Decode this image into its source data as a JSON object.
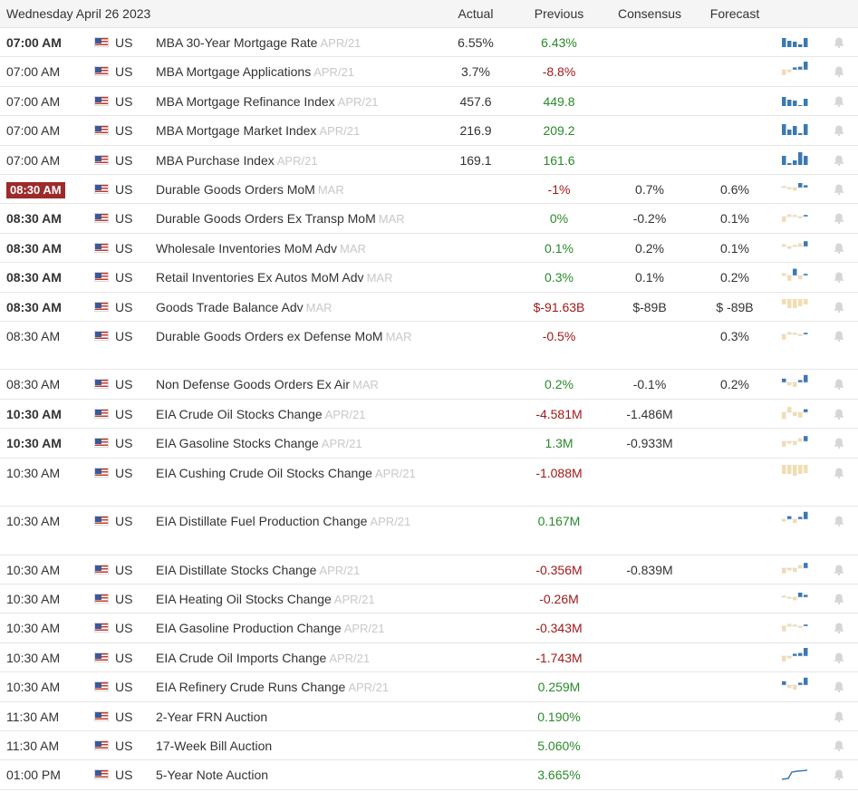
{
  "header": {
    "date": "Wednesday April 26 2023",
    "actual": "Actual",
    "previous": "Previous",
    "consensus": "Consensus",
    "forecast": "Forecast"
  },
  "colors": {
    "blue": "#3c79b0",
    "beige": "#f2dcb2",
    "red_badge": "#9c2b2b",
    "green": "#2a8a2a",
    "red": "#a01a1a"
  },
  "rows": [
    {
      "time": "07:00 AM",
      "bold": true,
      "highlight": false,
      "country": "US",
      "event": "MBA 30-Year Mortgage Rate",
      "period": "APR/21",
      "actual": "6.55%",
      "previous": "6.43%",
      "prev_color": "green",
      "consensus": "",
      "forecast": "",
      "chart": "blue"
    },
    {
      "time": "07:00 AM",
      "bold": false,
      "highlight": false,
      "country": "US",
      "event": "MBA Mortgage Applications",
      "period": "APR/21",
      "actual": "3.7%",
      "previous": "-8.8%",
      "prev_color": "red",
      "consensus": "",
      "forecast": "",
      "chart": "blue-mixed"
    },
    {
      "time": "07:00 AM",
      "bold": false,
      "highlight": false,
      "country": "US",
      "event": "MBA Mortgage Refinance Index",
      "period": "APR/21",
      "actual": "457.6",
      "previous": "449.8",
      "prev_color": "green",
      "consensus": "",
      "forecast": "",
      "chart": "blue"
    },
    {
      "time": "07:00 AM",
      "bold": false,
      "highlight": false,
      "country": "US",
      "event": "MBA Mortgage Market Index",
      "period": "APR/21",
      "actual": "216.9",
      "previous": "209.2",
      "prev_color": "green",
      "consensus": "",
      "forecast": "",
      "chart": "blue"
    },
    {
      "time": "07:00 AM",
      "bold": false,
      "highlight": false,
      "country": "US",
      "event": "MBA Purchase Index",
      "period": "APR/21",
      "actual": "169.1",
      "previous": "161.6",
      "prev_color": "green",
      "consensus": "",
      "forecast": "",
      "chart": "blue"
    },
    {
      "time": "08:30 AM",
      "bold": true,
      "highlight": true,
      "country": "US",
      "event": "Durable Goods Orders MoM",
      "period": "MAR",
      "actual": "",
      "previous": "-1%",
      "prev_color": "red",
      "consensus": "0.7%",
      "forecast": "0.6%",
      "chart": "mixed"
    },
    {
      "time": "08:30 AM",
      "bold": true,
      "highlight": false,
      "country": "US",
      "event": "Durable Goods Orders Ex Transp MoM",
      "period": "MAR",
      "actual": "",
      "previous": "0%",
      "prev_color": "green",
      "consensus": "-0.2%",
      "forecast": "0.1%",
      "chart": "mixed"
    },
    {
      "time": "08:30 AM",
      "bold": true,
      "highlight": false,
      "country": "US",
      "event": "Wholesale Inventories MoM Adv",
      "period": "MAR",
      "actual": "",
      "previous": "0.1%",
      "prev_color": "green",
      "consensus": "0.2%",
      "forecast": "0.1%",
      "chart": "mixed"
    },
    {
      "time": "08:30 AM",
      "bold": true,
      "highlight": false,
      "country": "US",
      "event": "Retail Inventories Ex Autos MoM Adv",
      "period": "MAR",
      "actual": "",
      "previous": "0.3%",
      "prev_color": "green",
      "consensus": "0.1%",
      "forecast": "0.2%",
      "chart": "mixed"
    },
    {
      "time": "08:30 AM",
      "bold": true,
      "highlight": false,
      "country": "US",
      "event": "Goods Trade Balance Adv",
      "period": "MAR",
      "actual": "",
      "previous": "$-91.63B",
      "prev_color": "red",
      "consensus": "$-89B",
      "forecast": "$ -89B",
      "chart": "beige"
    },
    {
      "time": "08:30 AM",
      "bold": false,
      "highlight": false,
      "country": "US",
      "event": "Durable Goods Orders ex Defense MoM",
      "period": "MAR",
      "actual": "",
      "previous": "-0.5%",
      "prev_color": "red",
      "consensus": "",
      "forecast": "0.3%",
      "chart": "mixed",
      "tall": true
    },
    {
      "time": "08:30 AM",
      "bold": false,
      "highlight": false,
      "country": "US",
      "event": "Non Defense Goods Orders Ex Air",
      "period": "MAR",
      "actual": "",
      "previous": "0.2%",
      "prev_color": "green",
      "consensus": "-0.1%",
      "forecast": "0.2%",
      "chart": "blue-mixed"
    },
    {
      "time": "10:30 AM",
      "bold": true,
      "highlight": false,
      "country": "US",
      "event": "EIA Crude Oil Stocks Change",
      "period": "APR/21",
      "actual": "",
      "previous": "-4.581M",
      "prev_color": "red",
      "consensus": "-1.486M",
      "forecast": "",
      "chart": "beige-mixed"
    },
    {
      "time": "10:30 AM",
      "bold": true,
      "highlight": false,
      "country": "US",
      "event": "EIA Gasoline Stocks Change",
      "period": "APR/21",
      "actual": "",
      "previous": "1.3M",
      "prev_color": "green",
      "consensus": "-0.933M",
      "forecast": "",
      "chart": "beige-mixed"
    },
    {
      "time": "10:30 AM",
      "bold": false,
      "highlight": false,
      "country": "US",
      "event": "EIA Cushing Crude Oil Stocks Change",
      "period": "APR/21",
      "actual": "",
      "previous": "-1.088M",
      "prev_color": "red",
      "consensus": "",
      "forecast": "",
      "chart": "beige",
      "tall": true
    },
    {
      "time": "10:30 AM",
      "bold": false,
      "highlight": false,
      "country": "US",
      "event": "EIA Distillate Fuel Production Change",
      "period": "APR/21",
      "actual": "",
      "previous": "0.167M",
      "prev_color": "green",
      "consensus": "",
      "forecast": "",
      "chart": "blue-mixed",
      "tall": true
    },
    {
      "time": "10:30 AM",
      "bold": false,
      "highlight": false,
      "country": "US",
      "event": "EIA Distillate Stocks Change",
      "period": "APR/21",
      "actual": "",
      "previous": "-0.356M",
      "prev_color": "red",
      "consensus": "-0.839M",
      "forecast": "",
      "chart": "beige-mixed"
    },
    {
      "time": "10:30 AM",
      "bold": false,
      "highlight": false,
      "country": "US",
      "event": "EIA Heating Oil Stocks Change",
      "period": "APR/21",
      "actual": "",
      "previous": "-0.26M",
      "prev_color": "red",
      "consensus": "",
      "forecast": "",
      "chart": "mixed"
    },
    {
      "time": "10:30 AM",
      "bold": false,
      "highlight": false,
      "country": "US",
      "event": "EIA Gasoline Production Change",
      "period": "APR/21",
      "actual": "",
      "previous": "-0.343M",
      "prev_color": "red",
      "consensus": "",
      "forecast": "",
      "chart": "mixed"
    },
    {
      "time": "10:30 AM",
      "bold": false,
      "highlight": false,
      "country": "US",
      "event": "EIA Crude Oil Imports Change",
      "period": "APR/21",
      "actual": "",
      "previous": "-1.743M",
      "prev_color": "red",
      "consensus": "",
      "forecast": "",
      "chart": "blue-mixed"
    },
    {
      "time": "10:30 AM",
      "bold": false,
      "highlight": false,
      "country": "US",
      "event": "EIA Refinery Crude Runs Change",
      "period": "APR/21",
      "actual": "",
      "previous": "0.259M",
      "prev_color": "green",
      "consensus": "",
      "forecast": "",
      "chart": "blue-mixed"
    },
    {
      "time": "11:30 AM",
      "bold": false,
      "highlight": false,
      "country": "US",
      "event": "2-Year FRN Auction",
      "period": "",
      "actual": "",
      "previous": "0.190%",
      "prev_color": "green",
      "consensus": "",
      "forecast": "",
      "chart": ""
    },
    {
      "time": "11:30 AM",
      "bold": false,
      "highlight": false,
      "country": "US",
      "event": "17-Week Bill Auction",
      "period": "",
      "actual": "",
      "previous": "5.060%",
      "prev_color": "green",
      "consensus": "",
      "forecast": "",
      "chart": ""
    },
    {
      "time": "01:00 PM",
      "bold": false,
      "highlight": false,
      "country": "US",
      "event": "5-Year Note Auction",
      "period": "",
      "actual": "",
      "previous": "3.665%",
      "prev_color": "green",
      "consensus": "",
      "forecast": "",
      "chart": "line"
    }
  ]
}
